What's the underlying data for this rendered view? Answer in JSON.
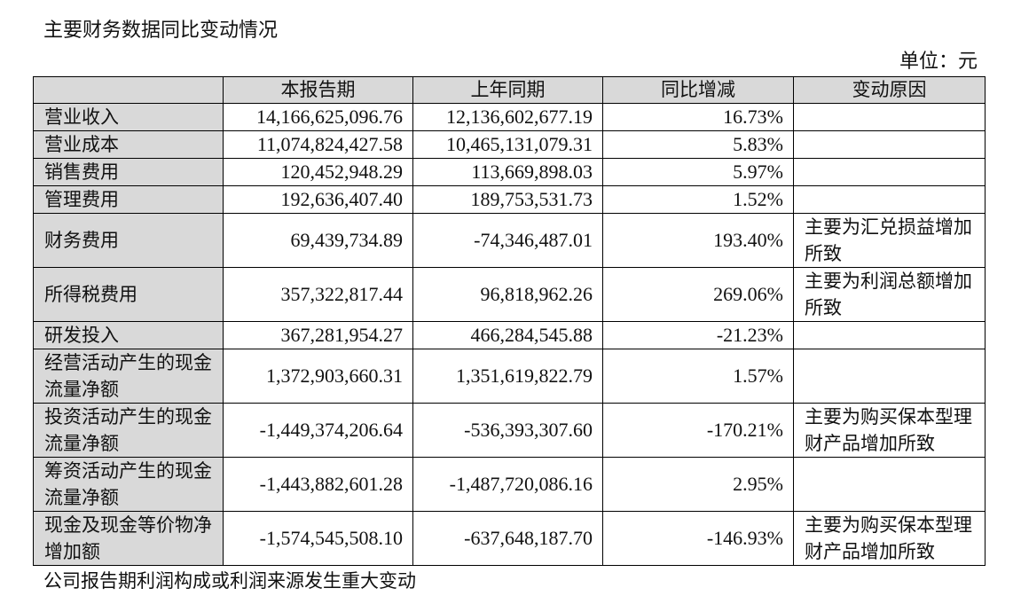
{
  "title": "主要财务数据同比变动情况",
  "unit": "单位：元",
  "table": {
    "headers": [
      "",
      "本报告期",
      "上年同期",
      "同比增减",
      "变动原因"
    ],
    "rows": [
      {
        "label": "营业收入",
        "current": "14,166,625,096.76",
        "previous": "12,136,602,677.19",
        "change": "16.73%",
        "reason": ""
      },
      {
        "label": "营业成本",
        "current": "11,074,824,427.58",
        "previous": "10,465,131,079.31",
        "change": "5.83%",
        "reason": ""
      },
      {
        "label": "销售费用",
        "current": "120,452,948.29",
        "previous": "113,669,898.03",
        "change": "5.97%",
        "reason": ""
      },
      {
        "label": "管理费用",
        "current": "192,636,407.40",
        "previous": "189,753,531.73",
        "change": "1.52%",
        "reason": ""
      },
      {
        "label": "财务费用",
        "current": "69,439,734.89",
        "previous": "-74,346,487.01",
        "change": "193.40%",
        "reason": "主要为汇兑损益增加所致"
      },
      {
        "label": "所得税费用",
        "current": "357,322,817.44",
        "previous": "96,818,962.26",
        "change": "269.06%",
        "reason": "主要为利润总额增加所致"
      },
      {
        "label": "研发投入",
        "current": "367,281,954.27",
        "previous": "466,284,545.88",
        "change": "-21.23%",
        "reason": ""
      },
      {
        "label": "经营活动产生的现金流量净额",
        "current": "1,372,903,660.31",
        "previous": "1,351,619,822.79",
        "change": "1.57%",
        "reason": ""
      },
      {
        "label": "投资活动产生的现金流量净额",
        "current": "-1,449,374,206.64",
        "previous": "-536,393,307.60",
        "change": "-170.21%",
        "reason": "主要为购买保本型理财产品增加所致"
      },
      {
        "label": "筹资活动产生的现金流量净额",
        "current": "-1,443,882,601.28",
        "previous": "-1,487,720,086.16",
        "change": "2.95%",
        "reason": ""
      },
      {
        "label": "现金及现金等价物净增加额",
        "current": "-1,574,545,508.10",
        "previous": "-637,648,187.70",
        "change": "-146.93%",
        "reason": "主要为购买保本型理财产品增加所致"
      }
    ]
  },
  "footer": "公司报告期利润构成或利润来源发生重大变动"
}
